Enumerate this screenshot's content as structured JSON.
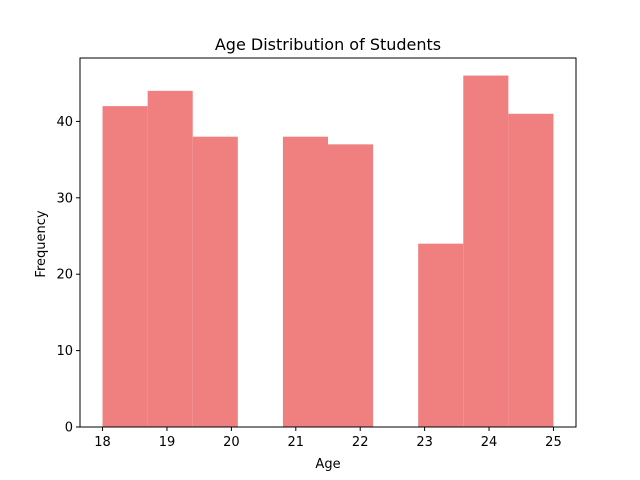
{
  "chart_data": {
    "type": "bar",
    "title": "Age Distribution of Students",
    "xlabel": "Age",
    "ylabel": "Frequency",
    "bins": [
      {
        "x0": 18.0,
        "x1": 18.7,
        "value": 42
      },
      {
        "x0": 18.7,
        "x1": 19.4,
        "value": 44
      },
      {
        "x0": 19.4,
        "x1": 20.1,
        "value": 38
      },
      {
        "x0": 20.1,
        "x1": 20.8,
        "value": 0
      },
      {
        "x0": 20.8,
        "x1": 21.5,
        "value": 38
      },
      {
        "x0": 21.5,
        "x1": 22.2,
        "value": 37
      },
      {
        "x0": 22.2,
        "x1": 22.9,
        "value": 0
      },
      {
        "x0": 22.9,
        "x1": 23.6,
        "value": 24
      },
      {
        "x0": 23.6,
        "x1": 24.3,
        "value": 46
      },
      {
        "x0": 24.3,
        "x1": 25.0,
        "value": 41
      }
    ],
    "xlim": [
      17.65,
      25.35
    ],
    "ylim": [
      0,
      48.3
    ],
    "xticks": [
      18,
      19,
      20,
      21,
      22,
      23,
      24,
      25
    ],
    "yticks": [
      0,
      10,
      20,
      30,
      40
    ],
    "bar_color": "#f08080",
    "grid": false
  }
}
